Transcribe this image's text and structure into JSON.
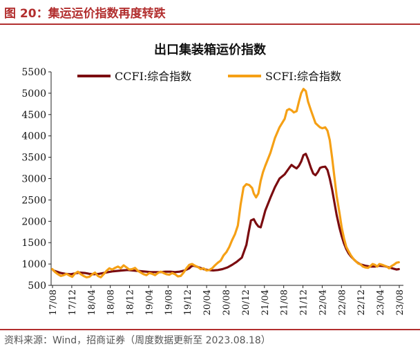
{
  "figure": {
    "title": "图 20：集运运价指数再度转跌",
    "source": "资料来源：Wind，招商证券（周度数据更新至 2023.08.18）"
  },
  "chart_data": {
    "type": "line",
    "title": "出口集装箱运价指数",
    "xlabel": "",
    "ylabel": "",
    "ylim": [
      500,
      5500
    ],
    "yticks": [
      500,
      1000,
      1500,
      2000,
      2500,
      3000,
      3500,
      4000,
      4500,
      5000,
      5500
    ],
    "xlim": [
      2017.58,
      2023.75
    ],
    "xticks": [
      "17/08",
      "17/12",
      "18/04",
      "18/08",
      "18/12",
      "19/04",
      "19/08",
      "19/12",
      "20/04",
      "20/08",
      "20/12",
      "21/04",
      "21/08",
      "21/12",
      "22/04",
      "22/08",
      "22/12",
      "23/04",
      "23/08"
    ],
    "grid": false,
    "legend_position": "top",
    "series": [
      {
        "name": "CCFI:综合指数",
        "color": "#7b0c10",
        "points": [
          [
            2017.62,
            850
          ],
          [
            2017.68,
            820
          ],
          [
            2017.75,
            790
          ],
          [
            2017.83,
            770
          ],
          [
            2017.92,
            760
          ],
          [
            2018.0,
            780
          ],
          [
            2018.08,
            800
          ],
          [
            2018.17,
            790
          ],
          [
            2018.25,
            770
          ],
          [
            2018.33,
            760
          ],
          [
            2018.42,
            770
          ],
          [
            2018.5,
            790
          ],
          [
            2018.58,
            810
          ],
          [
            2018.67,
            830
          ],
          [
            2018.75,
            840
          ],
          [
            2018.83,
            850
          ],
          [
            2018.92,
            860
          ],
          [
            2019.0,
            850
          ],
          [
            2019.08,
            840
          ],
          [
            2019.17,
            830
          ],
          [
            2019.25,
            820
          ],
          [
            2019.33,
            810
          ],
          [
            2019.42,
            810
          ],
          [
            2019.5,
            810
          ],
          [
            2019.58,
            820
          ],
          [
            2019.67,
            820
          ],
          [
            2019.75,
            810
          ],
          [
            2019.83,
            820
          ],
          [
            2019.92,
            850
          ],
          [
            2020.0,
            900
          ],
          [
            2020.04,
            950
          ],
          [
            2020.08,
            960
          ],
          [
            2020.17,
            920
          ],
          [
            2020.25,
            880
          ],
          [
            2020.33,
            860
          ],
          [
            2020.42,
            850
          ],
          [
            2020.5,
            860
          ],
          [
            2020.58,
            880
          ],
          [
            2020.67,
            920
          ],
          [
            2020.75,
            980
          ],
          [
            2020.83,
            1050
          ],
          [
            2020.92,
            1150
          ],
          [
            2021.0,
            1450
          ],
          [
            2021.04,
            1750
          ],
          [
            2021.08,
            2020
          ],
          [
            2021.13,
            2050
          ],
          [
            2021.17,
            1950
          ],
          [
            2021.21,
            1880
          ],
          [
            2021.25,
            1860
          ],
          [
            2021.29,
            2050
          ],
          [
            2021.33,
            2250
          ],
          [
            2021.42,
            2550
          ],
          [
            2021.5,
            2800
          ],
          [
            2021.58,
            3000
          ],
          [
            2021.67,
            3100
          ],
          [
            2021.75,
            3250
          ],
          [
            2021.79,
            3320
          ],
          [
            2021.83,
            3280
          ],
          [
            2021.88,
            3240
          ],
          [
            2021.92,
            3300
          ],
          [
            2021.96,
            3400
          ],
          [
            2022.0,
            3550
          ],
          [
            2022.04,
            3580
          ],
          [
            2022.08,
            3450
          ],
          [
            2022.13,
            3250
          ],
          [
            2022.17,
            3120
          ],
          [
            2022.21,
            3080
          ],
          [
            2022.25,
            3150
          ],
          [
            2022.29,
            3250
          ],
          [
            2022.33,
            3270
          ],
          [
            2022.38,
            3280
          ],
          [
            2022.42,
            3200
          ],
          [
            2022.46,
            3000
          ],
          [
            2022.5,
            2750
          ],
          [
            2022.54,
            2450
          ],
          [
            2022.58,
            2150
          ],
          [
            2022.63,
            1850
          ],
          [
            2022.67,
            1650
          ],
          [
            2022.71,
            1480
          ],
          [
            2022.75,
            1350
          ],
          [
            2022.79,
            1250
          ],
          [
            2022.83,
            1180
          ],
          [
            2022.88,
            1110
          ],
          [
            2022.92,
            1060
          ],
          [
            2022.96,
            1020
          ],
          [
            2023.0,
            990
          ],
          [
            2023.08,
            960
          ],
          [
            2023.17,
            940
          ],
          [
            2023.25,
            940
          ],
          [
            2023.33,
            960
          ],
          [
            2023.42,
            950
          ],
          [
            2023.5,
            920
          ],
          [
            2023.58,
            890
          ],
          [
            2023.63,
            870
          ],
          [
            2023.67,
            880
          ]
        ]
      },
      {
        "name": "SCFI:综合指数",
        "color": "#f5a015",
        "points": [
          [
            2017.6,
            880
          ],
          [
            2017.65,
            810
          ],
          [
            2017.7,
            760
          ],
          [
            2017.75,
            720
          ],
          [
            2017.8,
            740
          ],
          [
            2017.85,
            770
          ],
          [
            2017.9,
            730
          ],
          [
            2017.95,
            700
          ],
          [
            2018.0,
            780
          ],
          [
            2018.05,
            820
          ],
          [
            2018.1,
            760
          ],
          [
            2018.15,
            720
          ],
          [
            2018.2,
            690
          ],
          [
            2018.25,
            700
          ],
          [
            2018.3,
            760
          ],
          [
            2018.35,
            800
          ],
          [
            2018.4,
            720
          ],
          [
            2018.45,
            690
          ],
          [
            2018.5,
            760
          ],
          [
            2018.55,
            840
          ],
          [
            2018.6,
            900
          ],
          [
            2018.65,
            870
          ],
          [
            2018.7,
            910
          ],
          [
            2018.75,
            940
          ],
          [
            2018.8,
            900
          ],
          [
            2018.85,
            970
          ],
          [
            2018.9,
            920
          ],
          [
            2018.95,
            870
          ],
          [
            2019.0,
            880
          ],
          [
            2019.05,
            910
          ],
          [
            2019.1,
            840
          ],
          [
            2019.15,
            800
          ],
          [
            2019.2,
            760
          ],
          [
            2019.25,
            740
          ],
          [
            2019.3,
            790
          ],
          [
            2019.35,
            770
          ],
          [
            2019.4,
            740
          ],
          [
            2019.45,
            790
          ],
          [
            2019.5,
            820
          ],
          [
            2019.55,
            790
          ],
          [
            2019.6,
            760
          ],
          [
            2019.65,
            750
          ],
          [
            2019.7,
            790
          ],
          [
            2019.75,
            760
          ],
          [
            2019.8,
            710
          ],
          [
            2019.85,
            720
          ],
          [
            2019.9,
            800
          ],
          [
            2019.95,
            900
          ],
          [
            2020.0,
            980
          ],
          [
            2020.05,
            1000
          ],
          [
            2020.1,
            960
          ],
          [
            2020.15,
            930
          ],
          [
            2020.2,
            880
          ],
          [
            2020.25,
            900
          ],
          [
            2020.3,
            850
          ],
          [
            2020.35,
            860
          ],
          [
            2020.4,
            900
          ],
          [
            2020.45,
            970
          ],
          [
            2020.5,
            1030
          ],
          [
            2020.55,
            1080
          ],
          [
            2020.6,
            1200
          ],
          [
            2020.65,
            1280
          ],
          [
            2020.7,
            1400
          ],
          [
            2020.75,
            1560
          ],
          [
            2020.8,
            1700
          ],
          [
            2020.85,
            1900
          ],
          [
            2020.9,
            2400
          ],
          [
            2020.95,
            2800
          ],
          [
            2021.0,
            2870
          ],
          [
            2021.05,
            2850
          ],
          [
            2021.1,
            2780
          ],
          [
            2021.13,
            2650
          ],
          [
            2021.17,
            2560
          ],
          [
            2021.21,
            2650
          ],
          [
            2021.25,
            2950
          ],
          [
            2021.29,
            3150
          ],
          [
            2021.33,
            3300
          ],
          [
            2021.42,
            3600
          ],
          [
            2021.5,
            3950
          ],
          [
            2021.58,
            4200
          ],
          [
            2021.67,
            4400
          ],
          [
            2021.71,
            4600
          ],
          [
            2021.75,
            4630
          ],
          [
            2021.79,
            4600
          ],
          [
            2021.83,
            4550
          ],
          [
            2021.88,
            4580
          ],
          [
            2021.92,
            4800
          ],
          [
            2021.96,
            5000
          ],
          [
            2022.0,
            5100
          ],
          [
            2022.04,
            5050
          ],
          [
            2022.08,
            4800
          ],
          [
            2022.13,
            4600
          ],
          [
            2022.17,
            4450
          ],
          [
            2022.21,
            4300
          ],
          [
            2022.25,
            4250
          ],
          [
            2022.29,
            4200
          ],
          [
            2022.33,
            4180
          ],
          [
            2022.38,
            4200
          ],
          [
            2022.42,
            4120
          ],
          [
            2022.46,
            3900
          ],
          [
            2022.5,
            3500
          ],
          [
            2022.54,
            3050
          ],
          [
            2022.58,
            2600
          ],
          [
            2022.63,
            2200
          ],
          [
            2022.67,
            1850
          ],
          [
            2022.71,
            1600
          ],
          [
            2022.75,
            1400
          ],
          [
            2022.79,
            1300
          ],
          [
            2022.83,
            1200
          ],
          [
            2022.88,
            1110
          ],
          [
            2022.92,
            1060
          ],
          [
            2022.96,
            1010
          ],
          [
            2023.0,
            990
          ],
          [
            2023.04,
            940
          ],
          [
            2023.08,
            920
          ],
          [
            2023.13,
            910
          ],
          [
            2023.17,
            950
          ],
          [
            2023.21,
            1000
          ],
          [
            2023.25,
            980
          ],
          [
            2023.29,
            940
          ],
          [
            2023.33,
            1000
          ],
          [
            2023.38,
            980
          ],
          [
            2023.42,
            960
          ],
          [
            2023.46,
            940
          ],
          [
            2023.5,
            900
          ],
          [
            2023.54,
            950
          ],
          [
            2023.58,
            980
          ],
          [
            2023.63,
            1030
          ],
          [
            2023.67,
            1040
          ]
        ]
      }
    ]
  }
}
